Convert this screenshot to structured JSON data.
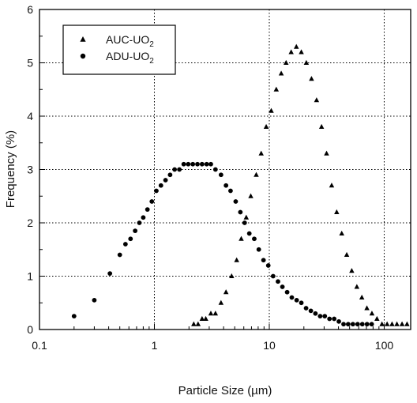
{
  "chart_data": {
    "type": "scatter",
    "title": "",
    "xlabel": "Particle Size (µm)",
    "ylabel": "Frequency (%)",
    "xscale": "log",
    "xlim": [
      0.1,
      170
    ],
    "ylim": [
      0,
      6
    ],
    "x_ticks": [
      0.1,
      1,
      10,
      100
    ],
    "x_tick_labels": [
      "0.1",
      "1",
      "10",
      "100"
    ],
    "y_ticks": [
      0,
      1,
      2,
      3,
      4,
      5,
      6
    ],
    "y_tick_labels": [
      "0",
      "1",
      "2",
      "3",
      "4",
      "5",
      "6"
    ],
    "grid": "dotted",
    "legend_position": "top-left",
    "series": [
      {
        "name": "AUC-UO2",
        "legend_main": "AUC-UO",
        "legend_sub": "2",
        "marker": "triangle",
        "x": [
          2.2,
          2.4,
          2.6,
          2.8,
          3.1,
          3.4,
          3.8,
          4.2,
          4.7,
          5.2,
          5.7,
          6.3,
          6.9,
          7.7,
          8.5,
          9.4,
          10.4,
          11.5,
          12.7,
          14.0,
          15.5,
          17.2,
          19.0,
          21.0,
          23.3,
          25.8,
          28.5,
          31.5,
          34.9,
          38.6,
          42.7,
          47.2,
          52.2,
          57.8,
          63.9,
          70.7,
          78.2,
          86.5,
          95.6,
          106,
          117,
          129,
          143,
          158
        ],
        "y": [
          0.1,
          0.1,
          0.2,
          0.2,
          0.3,
          0.3,
          0.5,
          0.7,
          1.0,
          1.3,
          1.7,
          2.1,
          2.5,
          2.9,
          3.3,
          3.8,
          4.1,
          4.5,
          4.8,
          5.0,
          5.2,
          5.3,
          5.2,
          5.0,
          4.7,
          4.3,
          3.8,
          3.3,
          2.7,
          2.2,
          1.8,
          1.4,
          1.1,
          0.8,
          0.6,
          0.4,
          0.3,
          0.2,
          0.1,
          0.1,
          0.1,
          0.1,
          0.1,
          0.1
        ]
      },
      {
        "name": "ADU-UO2",
        "legend_main": "ADU-UO",
        "legend_sub": "2",
        "marker": "circle",
        "x": [
          0.2,
          0.3,
          0.41,
          0.5,
          0.56,
          0.62,
          0.68,
          0.74,
          0.8,
          0.87,
          0.95,
          1.04,
          1.14,
          1.25,
          1.37,
          1.5,
          1.65,
          1.8,
          1.97,
          2.16,
          2.37,
          2.6,
          2.85,
          3.1,
          3.4,
          3.8,
          4.2,
          4.6,
          5.1,
          5.6,
          6.1,
          6.7,
          7.4,
          8.1,
          8.9,
          9.8,
          10.8,
          11.9,
          13.0,
          14.3,
          15.7,
          17.3,
          19.0,
          20.9,
          23.0,
          25.2,
          27.7,
          30.4,
          33.4,
          36.7,
          40.3,
          44.3,
          48.6,
          53.4,
          58.7,
          64.5,
          70.9,
          77.8
        ],
        "y": [
          0.25,
          0.55,
          1.05,
          1.4,
          1.6,
          1.7,
          1.85,
          2.0,
          2.1,
          2.25,
          2.4,
          2.6,
          2.7,
          2.8,
          2.9,
          3.0,
          3.0,
          3.1,
          3.1,
          3.1,
          3.1,
          3.1,
          3.1,
          3.1,
          3.0,
          2.9,
          2.7,
          2.6,
          2.4,
          2.2,
          2.0,
          1.8,
          1.7,
          1.5,
          1.3,
          1.2,
          1.0,
          0.9,
          0.8,
          0.7,
          0.6,
          0.55,
          0.5,
          0.4,
          0.35,
          0.3,
          0.25,
          0.25,
          0.2,
          0.2,
          0.15,
          0.1,
          0.1,
          0.1,
          0.1,
          0.1,
          0.1,
          0.1
        ]
      }
    ]
  }
}
